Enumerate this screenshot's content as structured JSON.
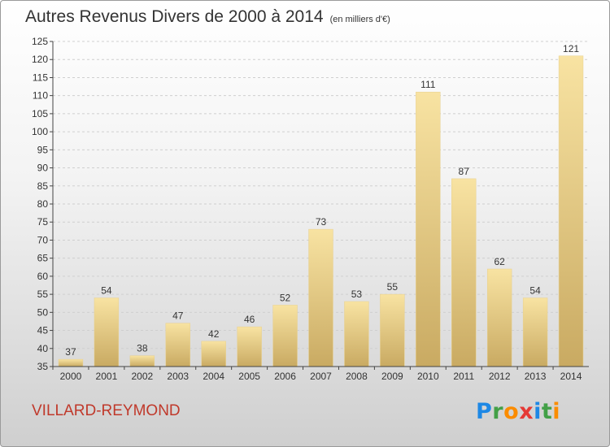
{
  "header": {
    "title": "Autres Revenus Divers de 2000 à 2014",
    "subtitle": "(en milliers d'€)"
  },
  "footer": {
    "commune": "VILLARD-REYMOND",
    "logo": "Proxiti"
  },
  "colors": {
    "bar_light": "#f8e3a2",
    "bar_dark": "#c9aa62",
    "title": "#333333",
    "commune": "#c0392b"
  },
  "chart_data": {
    "type": "bar",
    "title": "Autres Revenus Divers de 2000 à 2014",
    "subtitle": "(en milliers d'€)",
    "categories": [
      "2000",
      "2001",
      "2002",
      "2003",
      "2004",
      "2005",
      "2006",
      "2007",
      "2008",
      "2009",
      "2010",
      "2011",
      "2012",
      "2013",
      "2014"
    ],
    "values": [
      37,
      54,
      38,
      47,
      42,
      46,
      52,
      73,
      53,
      55,
      111,
      87,
      62,
      54,
      121
    ],
    "ylim": [
      35,
      125
    ],
    "yticks": [
      35,
      40,
      45,
      50,
      55,
      60,
      65,
      70,
      75,
      80,
      85,
      90,
      95,
      100,
      105,
      110,
      115,
      120,
      125
    ],
    "grid": true,
    "data_labels": true
  }
}
